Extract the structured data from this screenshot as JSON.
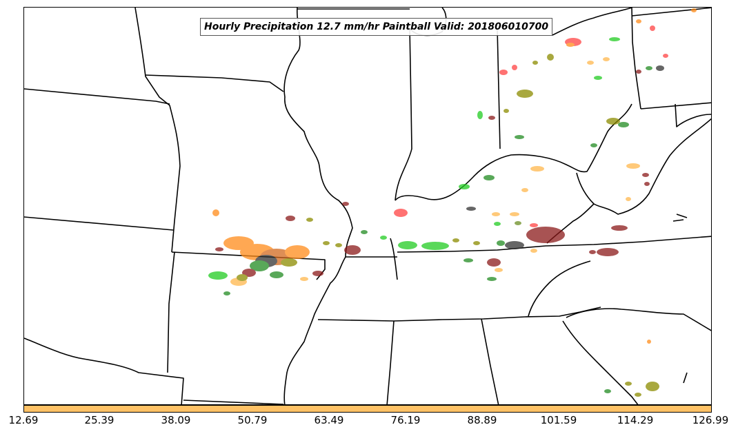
{
  "map": {
    "title": "Hourly Precipitation 12.7 mm/hr Paintball Valid: 201806010700",
    "colors": {
      "fill": "#ffffff",
      "boundary": "#000000",
      "members": [
        "#ff4444",
        "#ff8c1a",
        "#ffb84d",
        "#22cc22",
        "#228b22",
        "#8b1a1a",
        "#333333",
        "#8b8b00",
        "#6b8e23"
      ]
    }
  },
  "colorbar": {
    "color": "#ffc266",
    "tick_labels": [
      "12.69",
      "25.39",
      "38.09",
      "50.79",
      "63.49",
      "76.19",
      "88.89",
      "101.59",
      "114.29",
      "126.99"
    ]
  }
}
